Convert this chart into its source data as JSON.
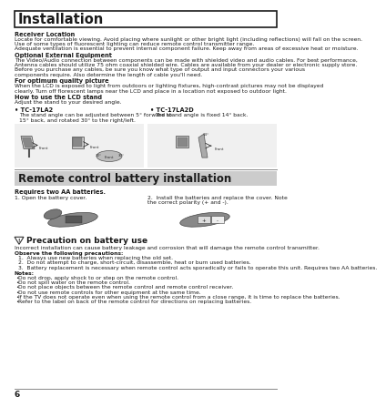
{
  "page_bg": "#ffffff",
  "title1": "Installation",
  "section1_items": [
    {
      "label": "Receiver Location",
      "text": "Locate for comfortable viewing. Avoid placing where sunlight or other bright light (including reflections) will fall on the screen.\nUse of some types of fluorescent lighting can reduce remote control transmitter range.\nAdequate ventilation is essential to prevent internal component failure. Keep away from areas of excessive heat or moisture."
    },
    {
      "label": "Optional External Equipment",
      "text": "The Video/Audio connection between components can be made with shielded video and audio cables. For best performance,\nAntenna cables should utilize 75 ohm coaxial shielded wire. Cables are available from your dealer or electronic supply store.\nBefore you purchase any cables, be sure you know what type of output and input connectors your various\ncomponents require. Also determine the length of cable you'll need."
    },
    {
      "label": "For optimum quality picture",
      "text": "When the LCD is exposed to light from outdoors or lighting fixtures, high-contrast pictures may not be displayed\nclearly. Turn off florescent lamps near the LCD and place in a location not exposed to outdoor light."
    },
    {
      "label": "How to use the LCD stand",
      "text": "Adjust the stand to your desired angle."
    }
  ],
  "tc_left_label": "• TC-17LA2",
  "tc_left_text": "The stand angle can be adjusted between 5° forward to\n15° back, and rotated 30° to the right/left.",
  "tc_right_label": "• TC-17LA2D",
  "tc_right_text": "The stand angle is fixed 14° back.",
  "title2": "Remote control battery installation",
  "requires_text": "Requires two AA batteries.",
  "step1_text": "1. Open the battery cover.",
  "step2_text": "2.  Install the batteries and replace the cover. Note\n    the correct polarity (+ and -).",
  "precaution_title": "Precaution on battery use",
  "precaution_intro": "Incorrect installation can cause battery leakage and corrosion that will damage the remote control transmitter.",
  "observe_label": "Observe the following precautions:",
  "precaution_items": [
    "Always use new batteries when replacing the old set.",
    "Do not attempt to charge, short-circuit, disassemble, heat or burn used batteries.",
    "Battery replacement is necessary when remote control acts sporadically or fails to operate this unit. Requires two AA batteries."
  ],
  "notes_label": "Notes:",
  "notes_items": [
    "Do not drop, apply shock to or step on the remote control.",
    "Do not spill water on the remote control.",
    "Do not place objects between the remote control and remote control receiver.",
    "Do not use remote controls for other equipment at the same time.",
    "If the TV does not operate even when using the remote control from a close range, it is time to replace the batteries.",
    "Refer to the label on back of the remote control for directions on replacing batteries."
  ],
  "page_number": "6",
  "border_color": "#1a1a1a",
  "text_color": "#1a1a1a",
  "title2_bg": "#d0d0d0"
}
